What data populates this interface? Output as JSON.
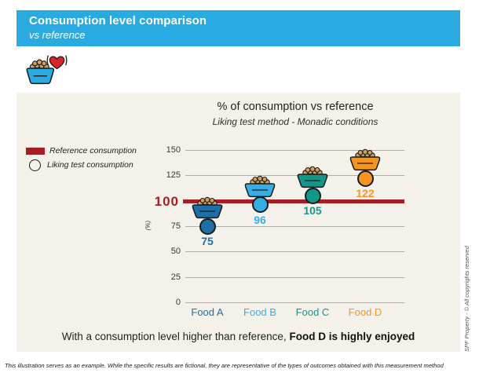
{
  "header": {
    "title": "Consumption level comparison",
    "subtitle": "vs reference"
  },
  "chart_data": {
    "type": "scatter",
    "title": "% of consumption vs reference",
    "subtitle": "Liking test method - Monadic conditions",
    "categories": [
      "Food A",
      "Food B",
      "Food C",
      "Food D"
    ],
    "values": [
      75,
      96,
      105,
      122
    ],
    "colors": [
      "#1d6fa8",
      "#35aee4",
      "#12988a",
      "#f7941e"
    ],
    "ylabel": "(%)",
    "ylim": [
      0,
      150
    ],
    "yticks": [
      150,
      125,
      75,
      50,
      25,
      0
    ],
    "grid": "horizontal",
    "legend_position": "left",
    "reference": {
      "value": 100,
      "label": "100",
      "color": "#a41e23"
    },
    "legend": [
      {
        "label": "Reference consumption",
        "swatch": "bar",
        "color": "#a41e23"
      },
      {
        "label": "Liking test consumption",
        "swatch": "circle"
      }
    ]
  },
  "footer": {
    "statement_regular": "With a consumption level higher than reference, ",
    "statement_bold": "Food D is highly enjoyed"
  },
  "side_note": "SPF Property - © All copyrights reserved",
  "disclaimer": "This illustration serves as an example. While the specific results are fictional, they are representative of the types of outcomes obtained with this measurement method"
}
